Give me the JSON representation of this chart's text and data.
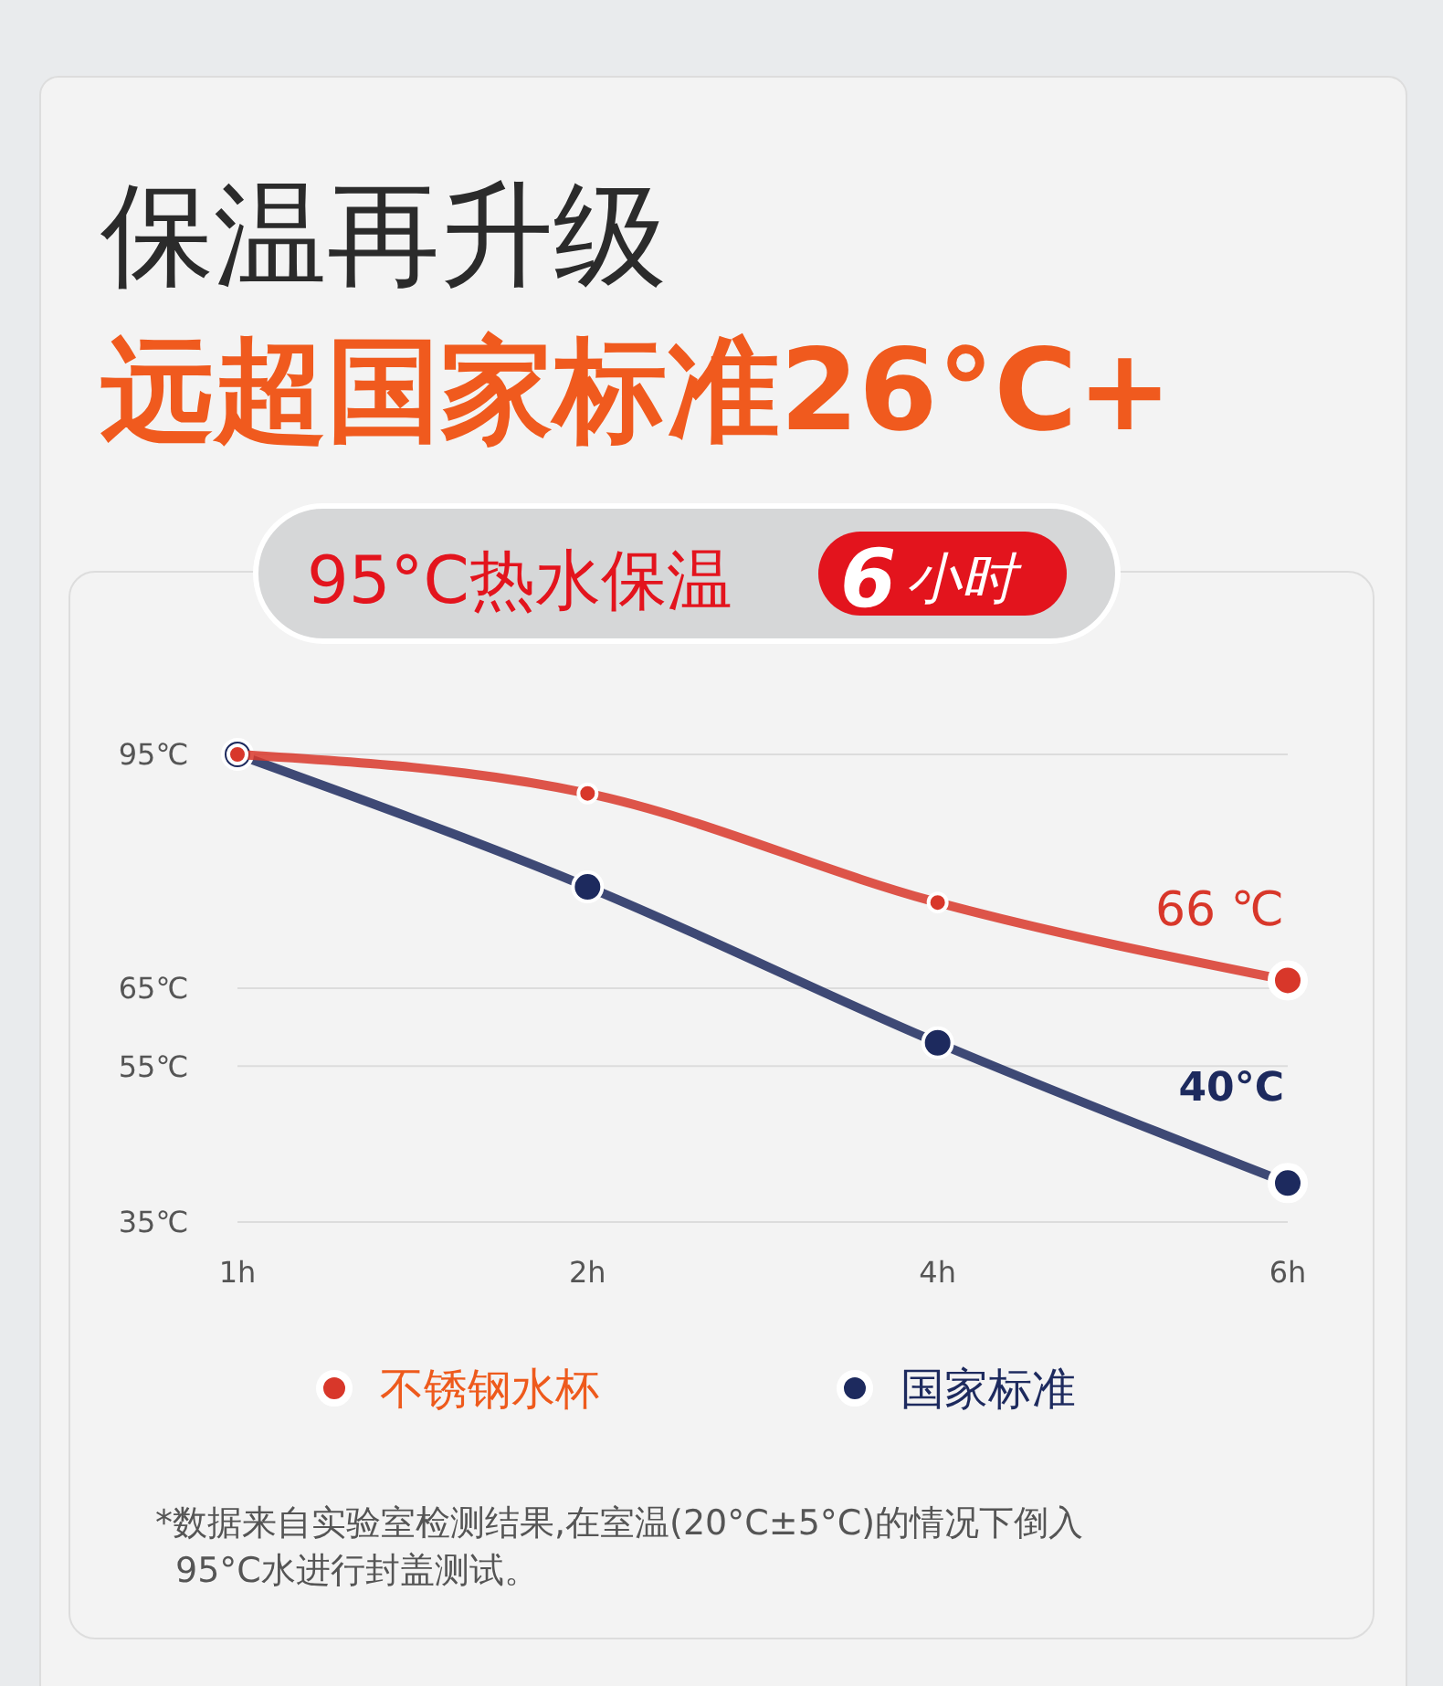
{
  "chart_data": {
    "type": "line",
    "title": "保温再升级",
    "subtitle": "远超国家标准26°C+",
    "annotations": [
      "95°C热水保温",
      "6小时",
      "*数据来自实验室检测结果,在室温(20°C±5°C)的情况下倒入95°C水进行封盖测试。"
    ],
    "categories": [
      "1h",
      "2h",
      "4h",
      "6h"
    ],
    "series": [
      {
        "name": "不锈钢水杯",
        "color": "#d8372a",
        "values": [
          95,
          90,
          76,
          66
        ],
        "value_labels": [
          null,
          null,
          null,
          "66 ℃"
        ]
      },
      {
        "name": "国家标准",
        "color": "#1d2a5e",
        "values": [
          95,
          78,
          58,
          40
        ],
        "value_labels": [
          null,
          null,
          null,
          "40°C"
        ]
      }
    ],
    "ylim": [
      35,
      95
    ],
    "yticks": [
      {
        "value": 95,
        "label": "95℃"
      },
      {
        "value": 65,
        "label": "65℃"
      },
      {
        "value": 55,
        "label": "55℃"
      },
      {
        "value": 35,
        "label": "35℃"
      }
    ],
    "grid": "y",
    "legend": "bottom",
    "marker": "circle",
    "line_style": "solid"
  }
}
